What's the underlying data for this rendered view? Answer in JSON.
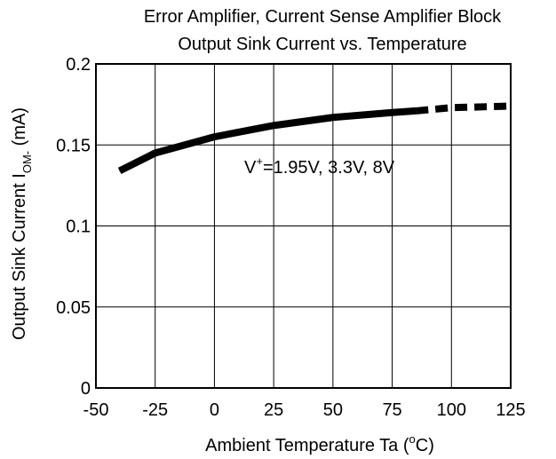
{
  "chart_data": {
    "type": "line",
    "title_line1": "Error Amplifier, Current Sense Amplifier Block",
    "title_line2": "Output Sink Current vs. Temperature",
    "xlabel": {
      "main": "Ambient Temperature Ta  (",
      "sup": "o",
      "end": "C)"
    },
    "ylabel": {
      "main": "Output Sink Current  I",
      "sub": "OM-",
      "end": "  (mA)"
    },
    "xlim": [
      -50,
      125
    ],
    "ylim": [
      0,
      0.2
    ],
    "x_ticks": [
      -50,
      -25,
      0,
      25,
      50,
      75,
      100,
      125
    ],
    "x_tick_labels": [
      "-50",
      "-25",
      "0",
      "25",
      "50",
      "75",
      "100",
      "125"
    ],
    "y_ticks": [
      0,
      0.05,
      0.1,
      0.15,
      0.2
    ],
    "y_tick_labels": [
      "0",
      "0.05",
      "0.1",
      "0.15",
      "0.2"
    ],
    "grid": true,
    "annotation": {
      "pre": "V",
      "sup": "+",
      "post": "=1.95V, 3.3V, 8V"
    },
    "series": [
      {
        "style": "solid",
        "x": [
          -40,
          -25,
          0,
          25,
          50,
          75,
          85
        ],
        "y": [
          0.134,
          0.145,
          0.155,
          0.162,
          0.167,
          0.17,
          0.171
        ]
      },
      {
        "style": "dashed",
        "x": [
          85,
          100,
          125
        ],
        "y": [
          0.171,
          0.173,
          0.174
        ]
      }
    ]
  }
}
